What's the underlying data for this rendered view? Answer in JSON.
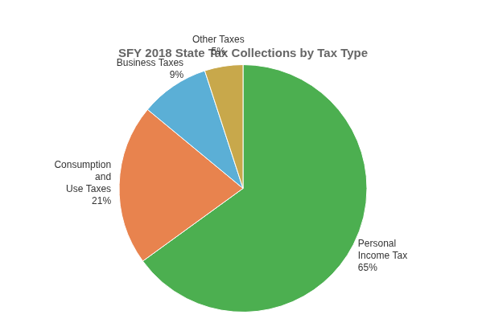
{
  "chart_data": {
    "type": "pie",
    "title": "SFY 2018 State Tax Collections by Tax Type",
    "categories": [
      "Personal\nIncome Tax",
      "Consumption\nand\nUse Taxes",
      "Business Taxes",
      "Other Taxes"
    ],
    "values": [
      65,
      21,
      9,
      5
    ],
    "value_labels": [
      "65%",
      "21%",
      "9%",
      "5%"
    ],
    "colors": [
      "#4caf50",
      "#e8834e",
      "#5bafd6",
      "#c8a84b"
    ],
    "data_labels": true
  }
}
